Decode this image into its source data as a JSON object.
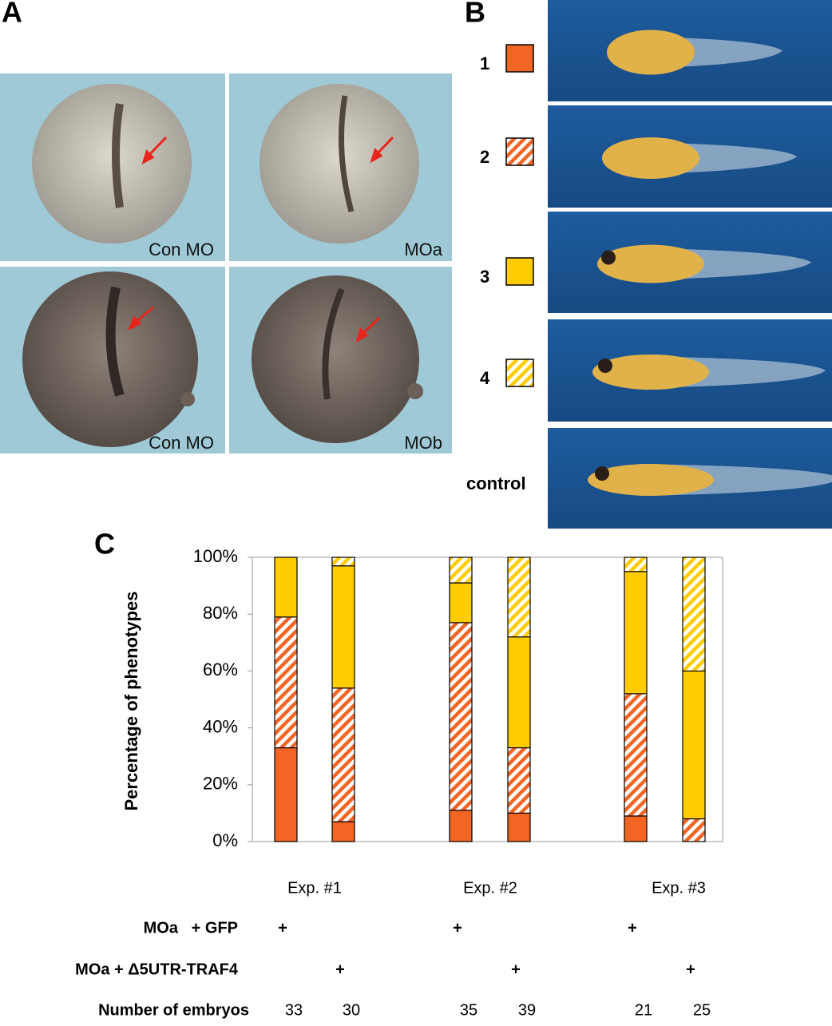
{
  "panel_a": {
    "label": "A",
    "captions": [
      "Con MO",
      "MOa",
      "Con MO",
      "MOb"
    ]
  },
  "panel_b": {
    "label": "B",
    "control": "control"
  },
  "chart_data": {
    "type": "stacked_bar",
    "panel_label": "C",
    "y_label": "Percentage of phenotypes",
    "categories": [
      null,
      null,
      null,
      null,
      null,
      null
    ],
    "groups": [
      "Exp. #1",
      "Exp. #2",
      "Exp. #3"
    ],
    "series": [
      {
        "name": "1",
        "color": "#f26522",
        "pattern": "solid",
        "values": [
          33,
          7,
          11,
          10,
          9,
          0
        ]
      },
      {
        "name": "2",
        "color": "#f26522",
        "pattern": "hatch",
        "values": [
          46,
          47,
          66,
          23,
          43,
          8
        ]
      },
      {
        "name": "3",
        "color": "#ffcc00",
        "pattern": "solid",
        "values": [
          21,
          43,
          14,
          39,
          43,
          52
        ]
      },
      {
        "name": "4",
        "color": "#ffcc00",
        "pattern": "hatch",
        "values": [
          0,
          3,
          9,
          28,
          5,
          40
        ]
      }
    ],
    "ylim": [
      0,
      100
    ],
    "yticks": [
      {
        "value": 0,
        "label": "0%"
      },
      {
        "value": 20,
        "label": "20%"
      },
      {
        "value": 40,
        "label": "40%"
      },
      {
        "value": 60,
        "label": "60%"
      },
      {
        "value": 80,
        "label": "80%"
      },
      {
        "value": 100,
        "label": "100%"
      }
    ],
    "rows": [
      {
        "label": "MOa   + GFP",
        "marks": [
          "+",
          null,
          "+",
          null,
          "+",
          null
        ]
      },
      {
        "label": "MOa + Δ5UTR-TRAF4",
        "marks": [
          null,
          "+",
          null,
          "+",
          null,
          "+"
        ]
      }
    ],
    "embryos_label": "Number of embryos",
    "embryos": [
      33,
      30,
      35,
      39,
      21,
      25
    ]
  }
}
